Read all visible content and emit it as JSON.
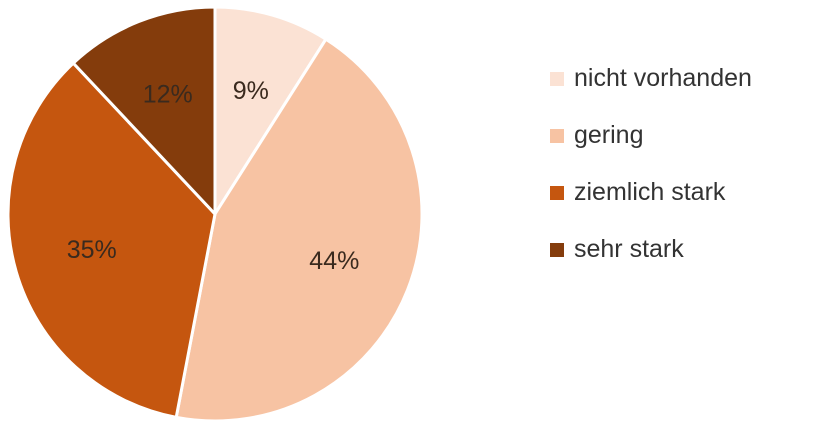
{
  "chart_data": {
    "type": "pie",
    "categories": [
      "nicht vorhanden",
      "gering",
      "ziemlich stark",
      "sehr stark"
    ],
    "values": [
      9,
      44,
      35,
      12
    ],
    "value_labels": [
      "9%",
      "44%",
      "35%",
      "12%"
    ],
    "colors": [
      "#fbe2d4",
      "#f7c3a3",
      "#c5560f",
      "#843c0c"
    ],
    "legend_position": "right",
    "start": "top, clockwise"
  }
}
